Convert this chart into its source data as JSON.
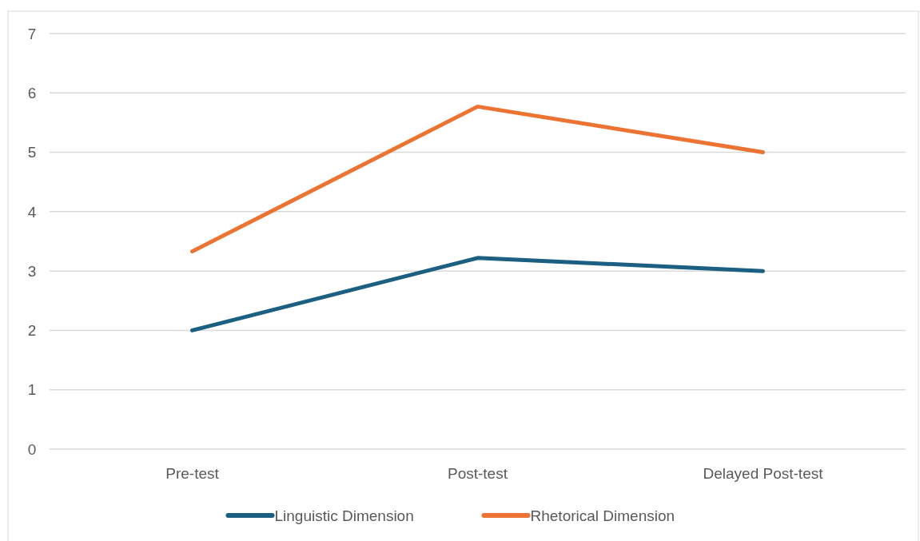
{
  "chart_data": {
    "type": "line",
    "categories": [
      "Pre-test",
      "Post-test",
      "Delayed Post-test"
    ],
    "series": [
      {
        "name": "Linguistic Dimension",
        "color": "#1b5f82",
        "values": [
          2,
          3.22,
          3
        ]
      },
      {
        "name": "Rhetorical Dimension",
        "color": "#ec7331",
        "values": [
          3.33,
          5.77,
          5
        ]
      }
    ],
    "ylim": [
      0,
      7
    ],
    "yticks": [
      0,
      1,
      2,
      3,
      4,
      5,
      6,
      7
    ],
    "grid": "y",
    "legend": "bottom",
    "marker": "none",
    "line_style": "solid"
  }
}
